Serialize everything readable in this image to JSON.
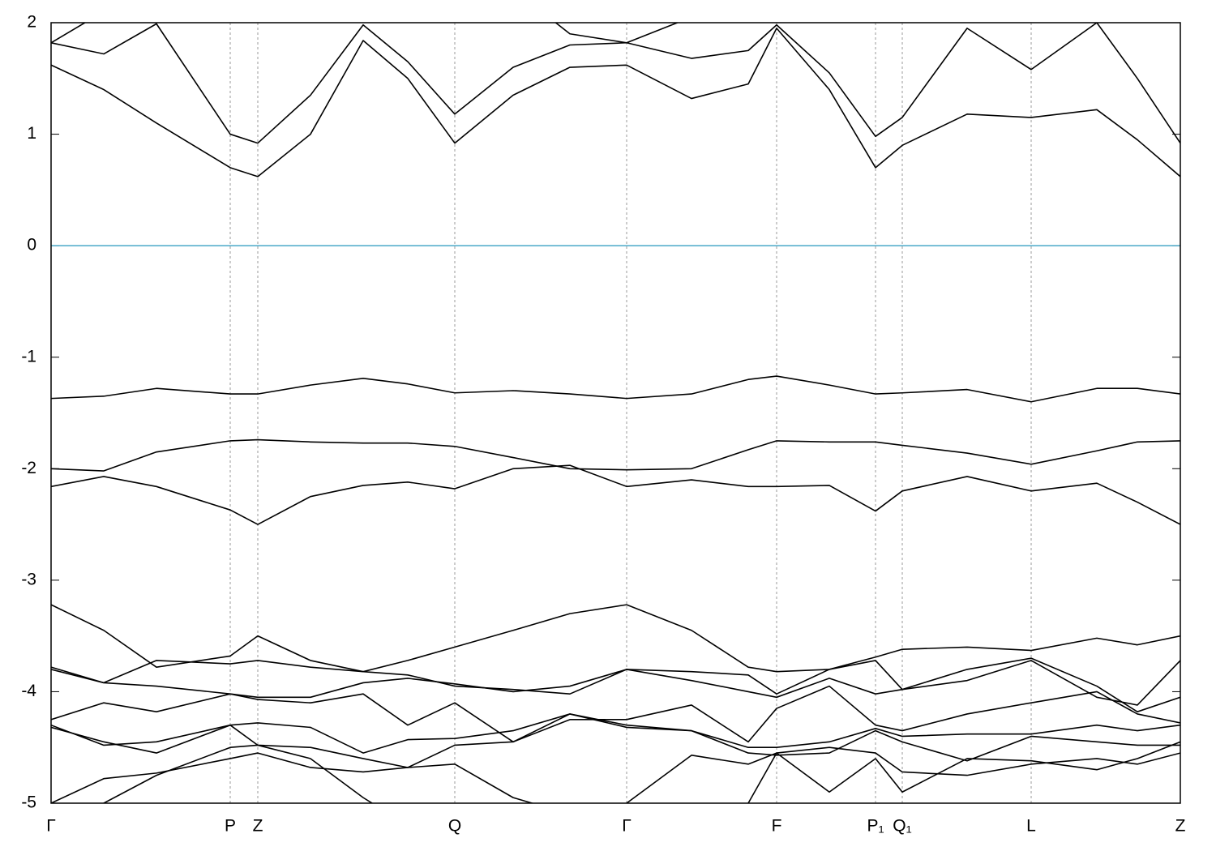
{
  "chart_data": {
    "type": "line",
    "x": [
      0,
      65,
      130,
      221,
      255,
      320,
      385,
      440,
      498,
      570,
      640,
      710,
      790,
      860,
      895,
      960,
      1017,
      1050,
      1130,
      1209,
      1290,
      1340,
      1393
    ],
    "xlim": [
      0,
      1393
    ],
    "xticks": [
      {
        "value": 0,
        "label": "Γ"
      },
      {
        "value": 221,
        "label": "P"
      },
      {
        "value": 255,
        "label": "Z"
      },
      {
        "value": 498,
        "label": "Q"
      },
      {
        "value": 710,
        "label": "Γ"
      },
      {
        "value": 895,
        "label": "F"
      },
      {
        "value": 1017,
        "label": "P₁"
      },
      {
        "value": 1050,
        "label": "Q₁"
      },
      {
        "value": 1209,
        "label": "L"
      },
      {
        "value": 1393,
        "label": "Z"
      }
    ],
    "ylim": [
      -5,
      2
    ],
    "yticks": [
      -5,
      -4,
      -3,
      -2,
      -1,
      0,
      1,
      2
    ],
    "grid": "x",
    "hline": {
      "value": 0,
      "color": "#4aa9c8"
    },
    "series": [
      {
        "color": "#000000",
        "values": [
          1.62,
          1.4,
          1.1,
          0.7,
          0.62,
          1.0,
          1.84,
          1.5,
          0.92,
          1.35,
          1.6,
          1.62,
          1.32,
          1.45,
          1.95,
          1.4,
          0.7,
          0.9,
          1.18,
          1.15,
          1.22,
          0.95,
          0.62
        ]
      },
      {
        "color": "#000000",
        "values": [
          1.82,
          1.72,
          1.99,
          1.0,
          0.92,
          1.35,
          1.98,
          1.65,
          1.18,
          1.6,
          1.8,
          1.82,
          1.68,
          1.75,
          1.98,
          1.55,
          0.98,
          1.15,
          1.95,
          1.58,
          2.0,
          1.5,
          0.92
        ]
      },
      {
        "color": "#000000",
        "values": [
          1.82,
          2.1,
          2.3,
          2.3,
          2.3,
          2.3,
          2.3,
          2.3,
          2.3,
          2.3,
          1.9,
          1.82,
          2.05,
          2.3,
          2.3,
          2.3,
          2.3,
          2.3,
          2.3,
          2.3,
          2.3,
          2.3,
          2.3
        ]
      },
      {
        "color": "#000000",
        "values": [
          -1.37,
          -1.35,
          -1.28,
          -1.33,
          -1.33,
          -1.25,
          -1.19,
          -1.24,
          -1.32,
          -1.3,
          -1.33,
          -1.37,
          -1.33,
          -1.2,
          -1.17,
          -1.25,
          -1.33,
          -1.32,
          -1.29,
          -1.4,
          -1.28,
          -1.28,
          -1.33
        ]
      },
      {
        "color": "#000000",
        "values": [
          -2.0,
          -2.02,
          -1.85,
          -1.75,
          -1.74,
          -1.76,
          -1.77,
          -1.77,
          -1.8,
          -1.9,
          -2.0,
          -2.01,
          -2.0,
          -1.83,
          -1.75,
          -1.76,
          -1.76,
          -1.79,
          -1.86,
          -1.96,
          -1.84,
          -1.76,
          -1.75
        ]
      },
      {
        "color": "#000000",
        "values": [
          -2.16,
          -2.07,
          -2.16,
          -2.37,
          -2.5,
          -2.25,
          -2.15,
          -2.12,
          -2.18,
          -2.0,
          -1.97,
          -2.16,
          -2.1,
          -2.16,
          -2.16,
          -2.15,
          -2.38,
          -2.2,
          -2.07,
          -2.2,
          -2.13,
          -2.3,
          -2.5
        ]
      },
      {
        "color": "#000000",
        "values": [
          -3.22,
          -3.45,
          -3.78,
          -3.68,
          -3.5,
          -3.72,
          -3.82,
          -3.72,
          -3.6,
          -3.45,
          -3.3,
          -3.22,
          -3.45,
          -3.78,
          -3.82,
          -3.8,
          -3.69,
          -3.62,
          -3.6,
          -3.63,
          -3.52,
          -3.58,
          -3.5
        ]
      },
      {
        "color": "#000000",
        "values": [
          -3.78,
          -3.92,
          -3.72,
          -3.75,
          -3.72,
          -3.78,
          -3.82,
          -3.85,
          -3.95,
          -3.98,
          -4.02,
          -3.8,
          -3.82,
          -3.85,
          -4.02,
          -3.8,
          -3.72,
          -3.98,
          -3.8,
          -3.7,
          -3.95,
          -4.18,
          -4.05
        ]
      },
      {
        "color": "#000000",
        "values": [
          -3.8,
          -3.92,
          -3.95,
          -4.02,
          -4.05,
          -4.05,
          -3.92,
          -3.88,
          -3.93,
          -4.0,
          -3.95,
          -3.8,
          -3.9,
          -4.0,
          -4.05,
          -3.88,
          -4.02,
          -3.98,
          -3.9,
          -3.72,
          -4.05,
          -4.12,
          -3.72
        ]
      },
      {
        "color": "#000000",
        "values": [
          -4.25,
          -4.1,
          -4.18,
          -4.02,
          -4.07,
          -4.1,
          -4.02,
          -4.3,
          -4.1,
          -4.45,
          -4.25,
          -4.25,
          -4.12,
          -4.45,
          -4.15,
          -3.95,
          -4.3,
          -4.35,
          -4.2,
          -4.1,
          -4.0,
          -4.2,
          -4.28
        ]
      },
      {
        "color": "#000000",
        "values": [
          -4.3,
          -4.48,
          -4.45,
          -4.3,
          -4.28,
          -4.32,
          -4.55,
          -4.43,
          -4.42,
          -4.35,
          -4.2,
          -4.3,
          -4.35,
          -4.5,
          -4.5,
          -4.45,
          -4.33,
          -4.4,
          -4.38,
          -4.38,
          -4.3,
          -4.35,
          -4.3
        ]
      },
      {
        "color": "#000000",
        "values": [
          -4.32,
          -4.45,
          -4.55,
          -4.3,
          -4.48,
          -4.5,
          -4.6,
          -4.68,
          -4.48,
          -4.45,
          -4.2,
          -4.32,
          -4.35,
          -4.55,
          -4.57,
          -4.55,
          -4.35,
          -4.45,
          -4.62,
          -4.4,
          -4.45,
          -4.48,
          -4.48
        ]
      },
      {
        "color": "#000000",
        "values": [
          -5.0,
          -4.78,
          -4.73,
          -4.6,
          -4.55,
          -4.68,
          -4.72,
          -4.68,
          -4.65,
          -4.95,
          -5.1,
          -5.0,
          -4.57,
          -4.65,
          -4.55,
          -4.5,
          -4.55,
          -4.72,
          -4.75,
          -4.65,
          -4.6,
          -4.65,
          -4.55
        ]
      },
      {
        "color": "#000000",
        "values": [
          -5.2,
          -5.0,
          -4.75,
          -4.5,
          -4.48,
          -4.6,
          -4.95,
          -5.2,
          -5.1,
          -5.3,
          -5.3,
          -5.1,
          -5.2,
          -5.0,
          -4.55,
          -4.9,
          -4.6,
          -4.9,
          -4.6,
          -4.62,
          -4.7,
          -4.6,
          -4.45
        ]
      }
    ]
  }
}
